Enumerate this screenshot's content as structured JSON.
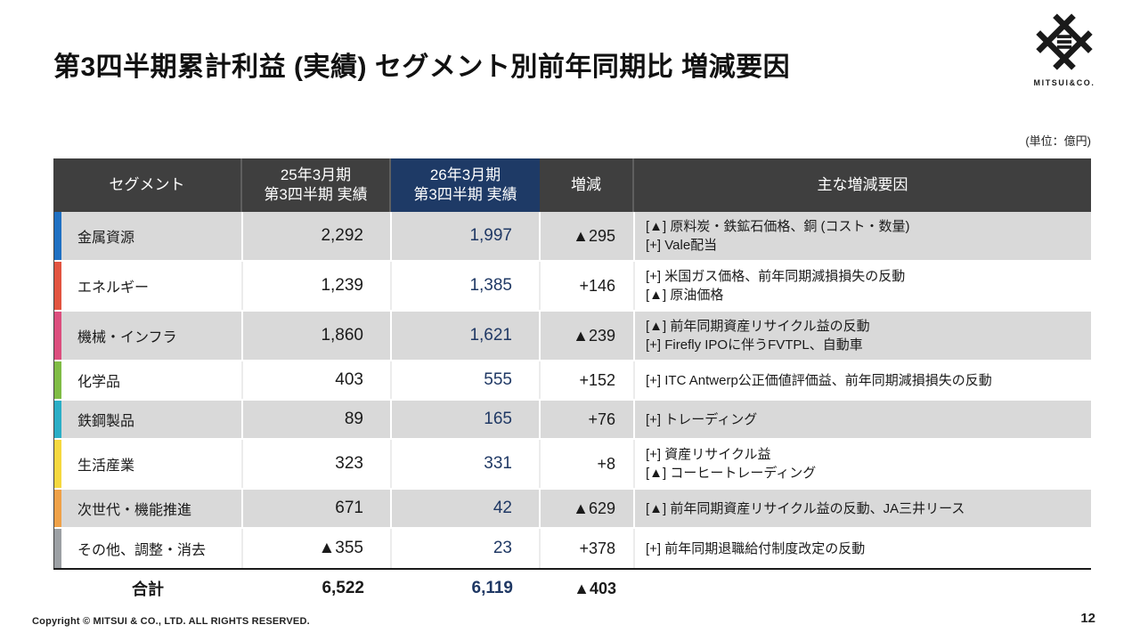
{
  "page": {
    "title": "第3四半期累計利益 (実績) セグメント別前年同期比 増減要因",
    "unit_label": "(単位：億円)",
    "copyright": "Copyright © MITSUI & CO., LTD. ALL RIGHTS RESERVED.",
    "page_number": "12"
  },
  "logo": {
    "icon": "mitsui-igeta-mark",
    "brand": "MITSUI&CO."
  },
  "table": {
    "columns": {
      "segment": "セグメント",
      "prev": "25年3月期\n第3四半期 実績",
      "curr": "26年3月期\n第3四半期 実績",
      "change": "増減",
      "factors": "主な増減要因"
    },
    "colors": {
      "header_bg": "#3F3F3F",
      "header_highlight_bg": "#1E3A66",
      "value_navy": "#1F3864",
      "shaded_row_bg": "#D9D9D9"
    },
    "rows": [
      {
        "segment": "金属資源",
        "color": "#1F70C2",
        "prev": "2,292",
        "curr": "1,997",
        "change": "▲295",
        "factors": [
          "[▲] 原料炭・鉄鉱石価格、銅 (コスト・数量)",
          "[+] Vale配当"
        ],
        "shaded": true
      },
      {
        "segment": "エネルギー",
        "color": "#E25440",
        "prev": "1,239",
        "curr": "1,385",
        "change": "+146",
        "factors": [
          "[+] 米国ガス価格、前年同期減損損失の反動",
          "[▲] 原油価格"
        ],
        "shaded": false
      },
      {
        "segment": "機械・インフラ",
        "color": "#DC4E7E",
        "prev": "1,860",
        "curr": "1,621",
        "change": "▲239",
        "factors": [
          "[▲] 前年同期資産リサイクル益の反動",
          "[+] Firefly IPOに伴うFVTPL、自動車"
        ],
        "shaded": true
      },
      {
        "segment": "化学品",
        "color": "#7FBC45",
        "prev": "403",
        "curr": "555",
        "change": "+152",
        "factors": [
          "[+] ITC Antwerp公正価値評価益、前年同期減損損失の反動"
        ],
        "shaded": false
      },
      {
        "segment": "鉄鋼製品",
        "color": "#2BAEC6",
        "prev": "89",
        "curr": "165",
        "change": "+76",
        "factors": [
          "[+] トレーディング"
        ],
        "shaded": true
      },
      {
        "segment": "生活産業",
        "color": "#F5D83F",
        "prev": "323",
        "curr": "331",
        "change": "+8",
        "factors": [
          "[+] 資産リサイクル益",
          "[▲] コーヒートレーディング"
        ],
        "shaded": false
      },
      {
        "segment": "次世代・機能推進",
        "color": "#EFA148",
        "prev": "671",
        "curr": "42",
        "change": "▲629",
        "factors": [
          "[▲] 前年同期資産リサイクル益の反動、JA三井リース"
        ],
        "shaded": true
      },
      {
        "segment": "その他、調整・消去",
        "color": "#9CA0A4",
        "prev": "▲355",
        "curr": "23",
        "change": "+378",
        "factors": [
          "[+] 前年同期退職給付制度改定の反動"
        ],
        "shaded": false
      }
    ],
    "total": {
      "label": "合計",
      "prev": "6,522",
      "curr": "6,119",
      "change": "▲403",
      "factors": ""
    }
  }
}
